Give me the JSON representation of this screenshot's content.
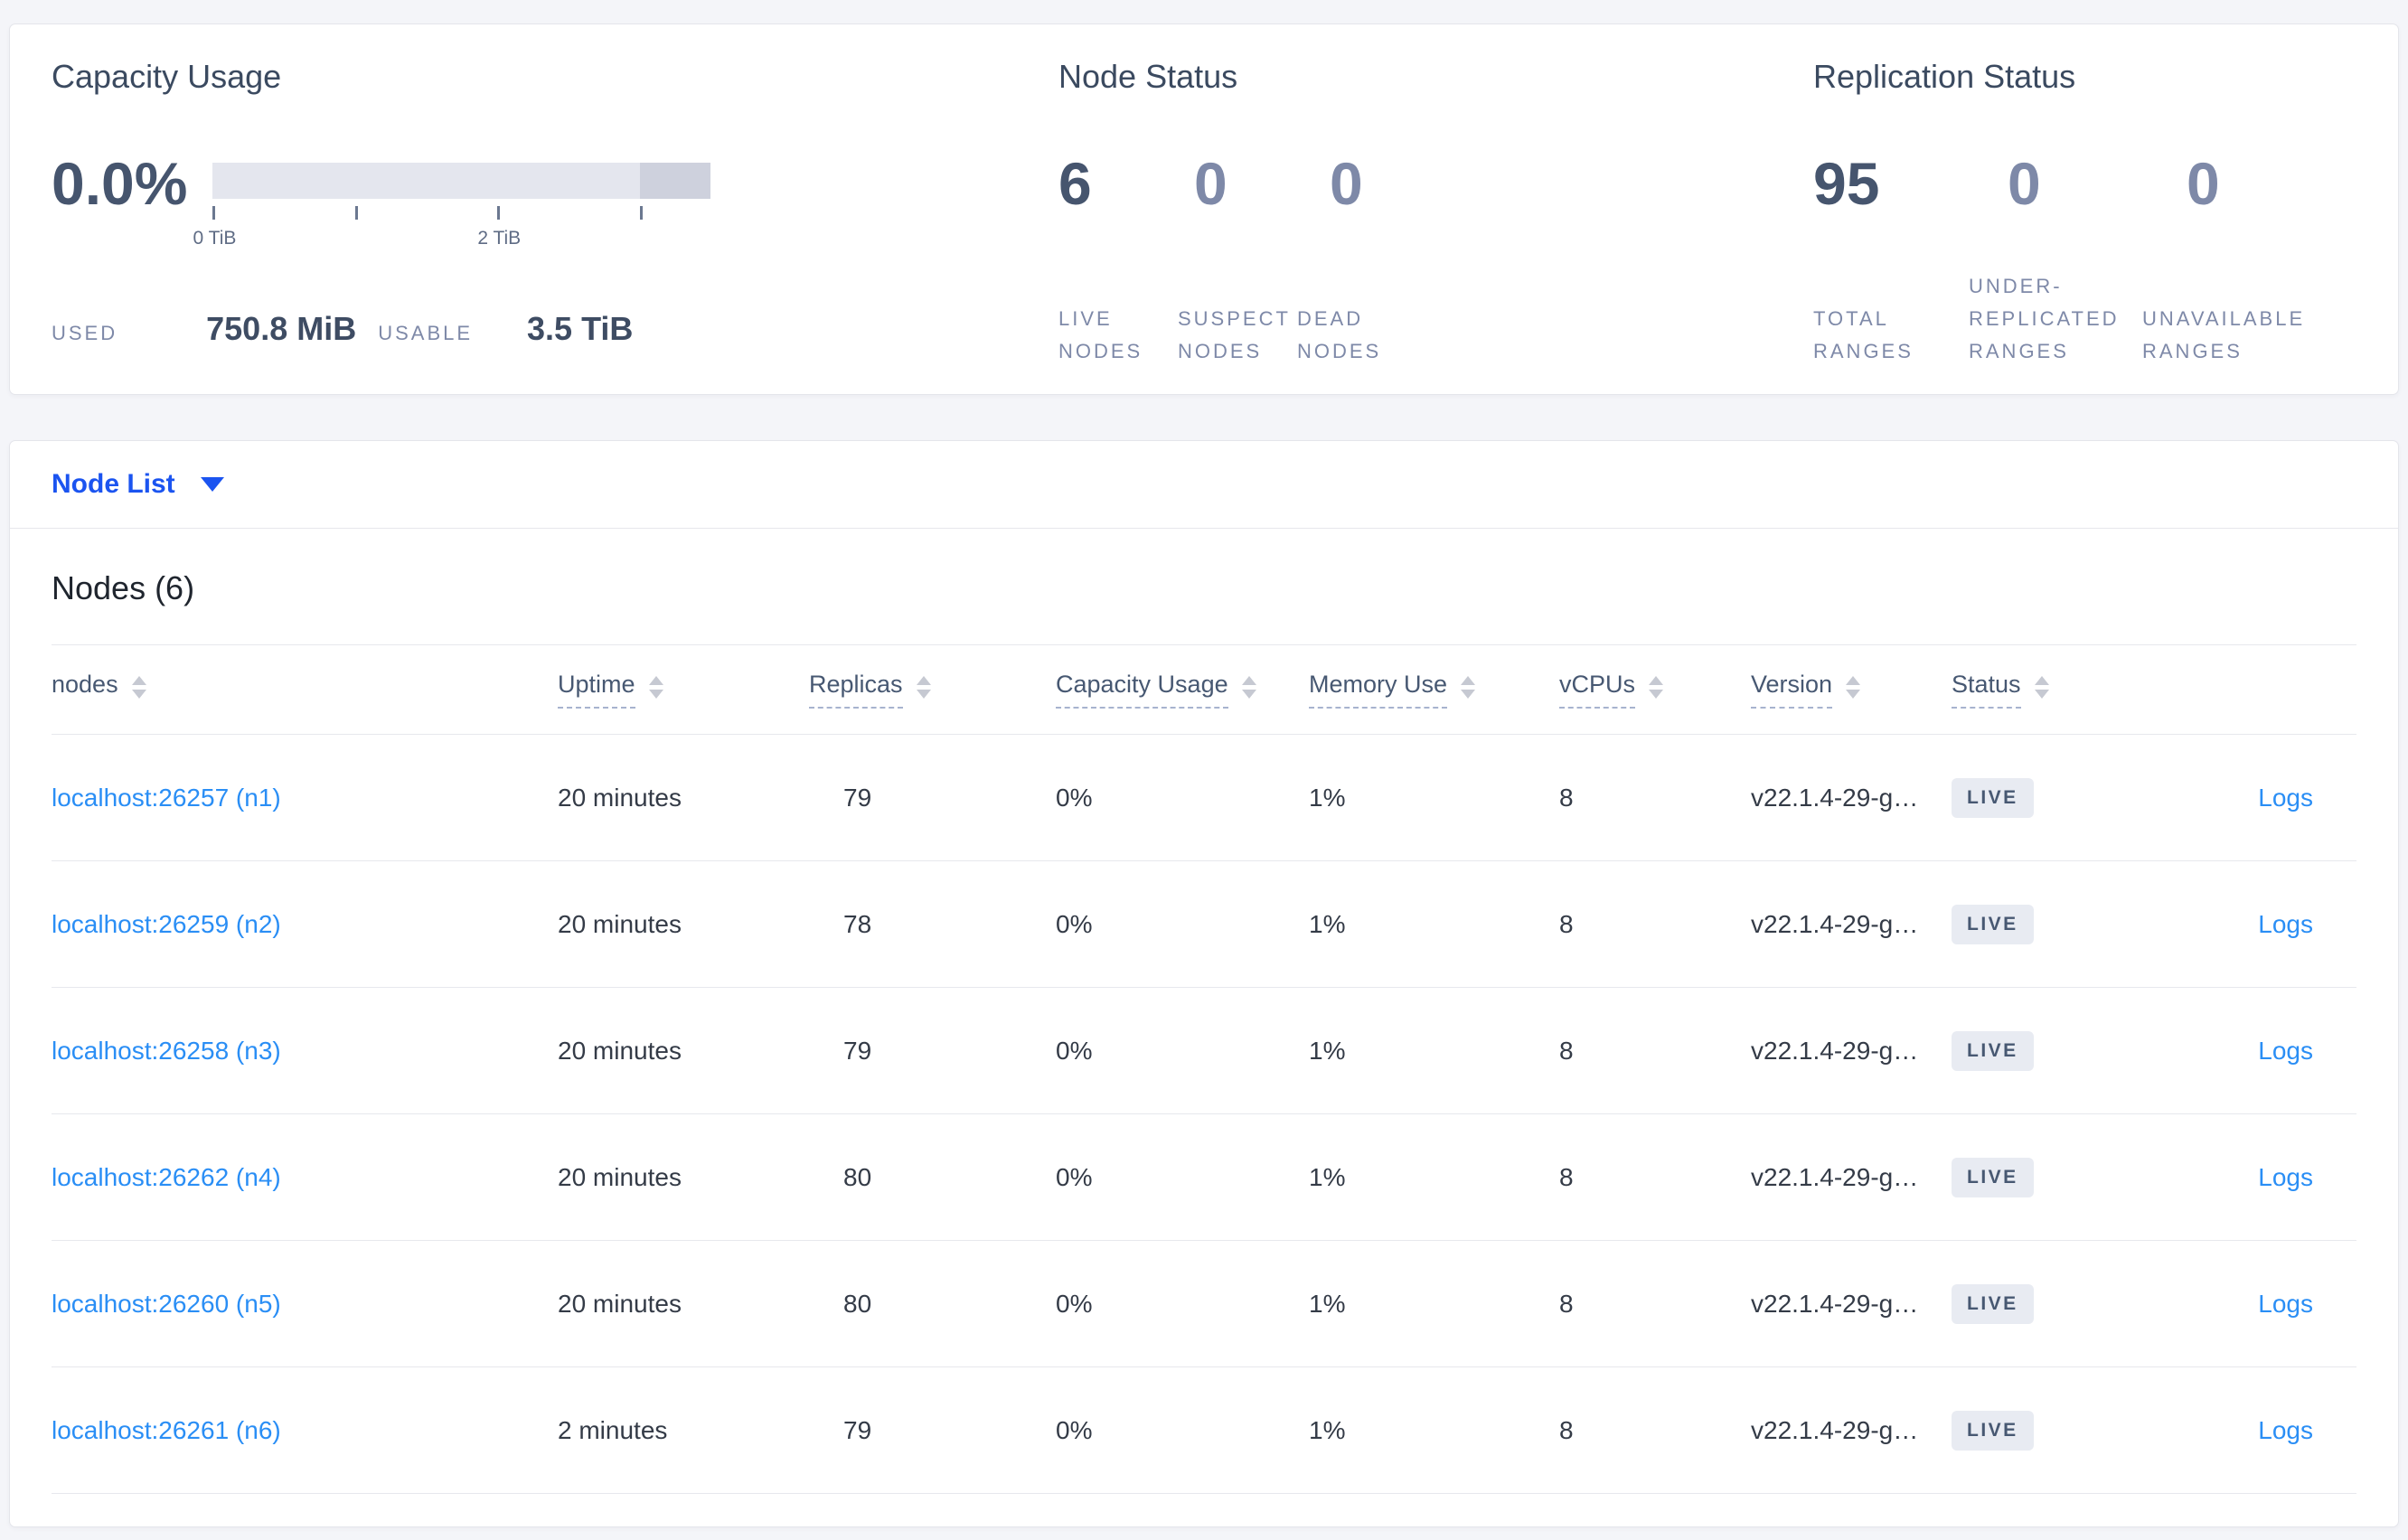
{
  "colors": {
    "page_background": "#f4f5f9",
    "accent_link_blue": "#2a8ef5",
    "node_list_blue": "#1b54f0",
    "primary_stat": "#46556e",
    "dim_stat": "#7e89a8",
    "bar_light": "#e4e6ee",
    "bar_dark": "#ced1dd",
    "badge_background": "#e8ebf2"
  },
  "capacity": {
    "title": "Capacity Usage",
    "percent": "0.0%",
    "ticks": [
      {
        "pct": 0,
        "label": "0 TiB"
      },
      {
        "pct": 28.57,
        "label": ""
      },
      {
        "pct": 57.14,
        "label": "2 TiB"
      },
      {
        "pct": 85.71,
        "label": ""
      }
    ],
    "used_label": "USED",
    "used_value": "750.8 MiB",
    "usable_label": "USABLE",
    "usable_value": "3.5 TiB"
  },
  "node_status": {
    "title": "Node Status",
    "stats": [
      {
        "value": "6",
        "label": "LIVE NODES",
        "dim": false
      },
      {
        "value": "0",
        "label": "SUSPECT NODES",
        "dim": true
      },
      {
        "value": "0",
        "label": "DEAD NODES",
        "dim": true
      }
    ]
  },
  "replication": {
    "title": "Replication Status",
    "stats": [
      {
        "value": "95",
        "label": "TOTAL RANGES",
        "dim": false
      },
      {
        "value": "0",
        "label": "UNDER-REPLICATED RANGES",
        "dim": true
      },
      {
        "value": "0",
        "label": "UNAVAILABLE RANGES",
        "dim": true
      }
    ]
  },
  "node_list": {
    "toggle_label": "Node List",
    "caret_icon": "caret-down",
    "heading": "Nodes (6)",
    "logs_label": "Logs",
    "columns": [
      {
        "label": "nodes",
        "dashed": false,
        "sortable": true
      },
      {
        "label": "Uptime",
        "dashed": true,
        "sortable": true
      },
      {
        "label": "Replicas",
        "dashed": true,
        "sortable": true
      },
      {
        "label": "Capacity Usage",
        "dashed": true,
        "sortable": true
      },
      {
        "label": "Memory Use",
        "dashed": true,
        "sortable": true
      },
      {
        "label": "vCPUs",
        "dashed": true,
        "sortable": true
      },
      {
        "label": "Version",
        "dashed": true,
        "sortable": true
      },
      {
        "label": "Status",
        "dashed": true,
        "sortable": true
      },
      {
        "label": "",
        "dashed": false,
        "sortable": false
      }
    ],
    "rows": [
      {
        "addr": "localhost:26257 (n1)",
        "uptime": "20 minutes",
        "replicas": "79",
        "capacity": "0%",
        "memory": "1%",
        "vcpus": "8",
        "version": "v22.1.4-29-g…",
        "status": "LIVE"
      },
      {
        "addr": "localhost:26259 (n2)",
        "uptime": "20 minutes",
        "replicas": "78",
        "capacity": "0%",
        "memory": "1%",
        "vcpus": "8",
        "version": "v22.1.4-29-g…",
        "status": "LIVE"
      },
      {
        "addr": "localhost:26258 (n3)",
        "uptime": "20 minutes",
        "replicas": "79",
        "capacity": "0%",
        "memory": "1%",
        "vcpus": "8",
        "version": "v22.1.4-29-g…",
        "status": "LIVE"
      },
      {
        "addr": "localhost:26262 (n4)",
        "uptime": "20 minutes",
        "replicas": "80",
        "capacity": "0%",
        "memory": "1%",
        "vcpus": "8",
        "version": "v22.1.4-29-g…",
        "status": "LIVE"
      },
      {
        "addr": "localhost:26260 (n5)",
        "uptime": "20 minutes",
        "replicas": "80",
        "capacity": "0%",
        "memory": "1%",
        "vcpus": "8",
        "version": "v22.1.4-29-g…",
        "status": "LIVE"
      },
      {
        "addr": "localhost:26261 (n6)",
        "uptime": "2 minutes",
        "replicas": "79",
        "capacity": "0%",
        "memory": "1%",
        "vcpus": "8",
        "version": "v22.1.4-29-g…",
        "status": "LIVE"
      }
    ]
  }
}
